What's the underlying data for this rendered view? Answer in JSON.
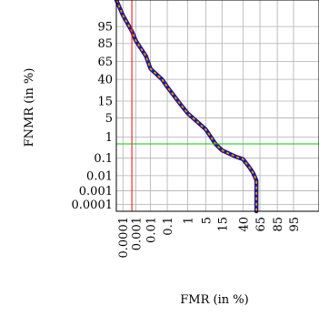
{
  "chart_data": {
    "type": "line",
    "xlabel": "FMR (in %)",
    "ylabel": "FNMR (in %)",
    "x_ticks": [
      "0.0001",
      "0.001",
      "0.01",
      "0.1",
      "1",
      "5",
      "15",
      "40",
      "65",
      "85",
      "95"
    ],
    "y_ticks": [
      "95",
      "85",
      "65",
      "40",
      "15",
      "5",
      "1",
      "0.1",
      "0.01",
      "0.001",
      "0.0001"
    ],
    "grid": true,
    "vertical_marker_fmr": 0.0005,
    "horizontal_marker_fnmr": 0.5,
    "series": [
      {
        "x": [
          1e-05,
          0.0001,
          0.0005,
          0.001,
          0.005,
          0.01,
          0.05,
          0.1,
          0.5,
          1,
          5,
          10,
          15,
          30,
          40,
          50,
          55,
          60,
          60,
          60
        ],
        "y": [
          99.9,
          98,
          93,
          87,
          72,
          55,
          40,
          30,
          12,
          7,
          2,
          0.5,
          0.25,
          0.12,
          0.09,
          0.03,
          0.015,
          0.005,
          0.0003,
          3e-06
        ]
      }
    ],
    "colors": {
      "curve_outer": "#1c1c8c",
      "curve_inner": "#ff8c00",
      "vertical_marker": "#ff0000",
      "horizontal_marker": "#00cc00",
      "grid": "#b0b0b0",
      "frame": "#000000"
    }
  }
}
